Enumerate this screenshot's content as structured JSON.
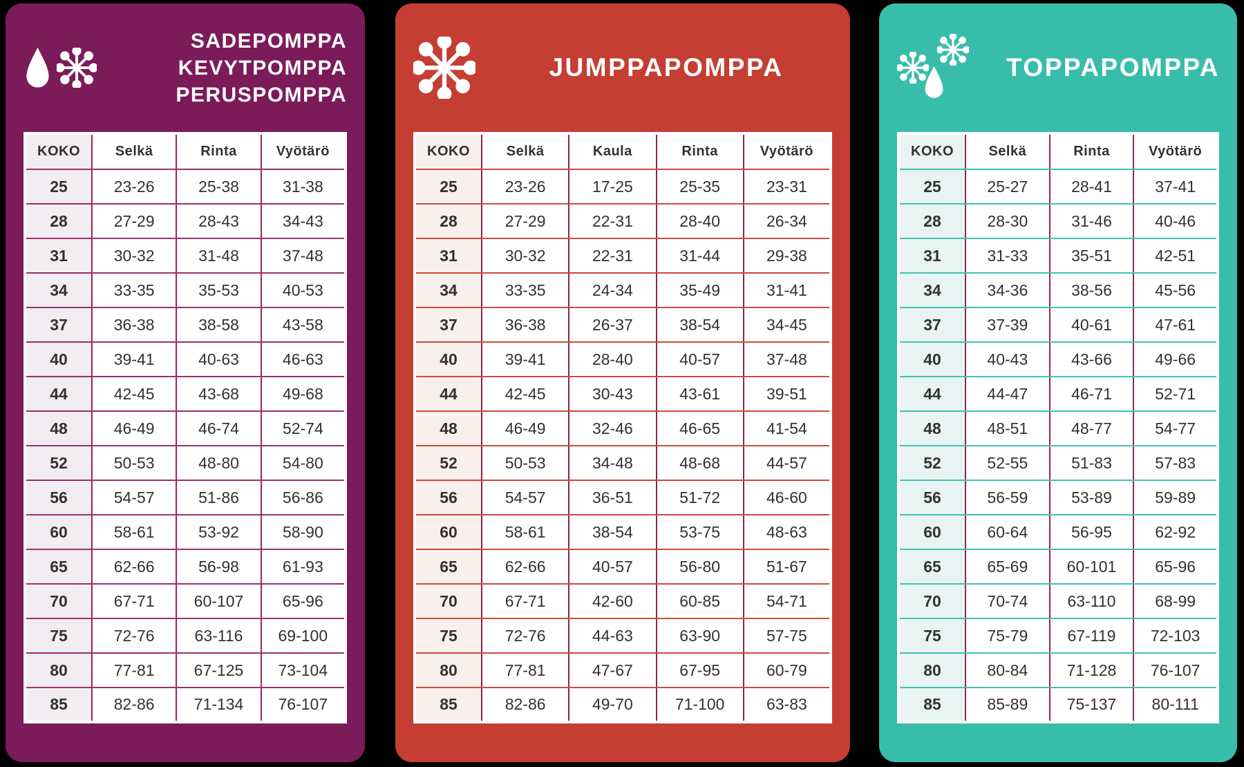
{
  "page": {
    "background": "#000000"
  },
  "chart_data": [
    {
      "type": "table",
      "panel": "sadepomppa-kevytpomppa-peruspomppa",
      "title_lines": [
        "SADEPOMPPA",
        "KEVYTPOMPPA",
        "PERUSPOMPPA"
      ],
      "icons": [
        "raindrop-icon",
        "snowflake-icon"
      ],
      "columns": [
        "KOKO",
        "Selkä",
        "Rinta",
        "Vyötärö"
      ],
      "rows": [
        [
          "25",
          "23-26",
          "25-38",
          "31-38"
        ],
        [
          "28",
          "27-29",
          "28-43",
          "34-43"
        ],
        [
          "31",
          "30-32",
          "31-48",
          "37-48"
        ],
        [
          "34",
          "33-35",
          "35-53",
          "40-53"
        ],
        [
          "37",
          "36-38",
          "38-58",
          "43-58"
        ],
        [
          "40",
          "39-41",
          "40-63",
          "46-63"
        ],
        [
          "44",
          "42-45",
          "43-68",
          "49-68"
        ],
        [
          "48",
          "46-49",
          "46-74",
          "52-74"
        ],
        [
          "52",
          "50-53",
          "48-80",
          "54-80"
        ],
        [
          "56",
          "54-57",
          "51-86",
          "56-86"
        ],
        [
          "60",
          "58-61",
          "53-92",
          "58-90"
        ],
        [
          "65",
          "62-66",
          "56-98",
          "61-93"
        ],
        [
          "70",
          "67-71",
          "60-107",
          "65-96"
        ],
        [
          "75",
          "72-76",
          "63-116",
          "69-100"
        ],
        [
          "80",
          "77-81",
          "67-125",
          "73-104"
        ],
        [
          "85",
          "82-86",
          "71-134",
          "76-107"
        ]
      ],
      "colors": {
        "panel_bg": "#7B1B59",
        "horizontal_border": "#9D2F6D",
        "vertical_border": "#94266A",
        "koko_column_bg": "#F2EDF0",
        "table_bg": "#FFFFFF",
        "title_text": "#FFFFFF",
        "cell_text": "#323130"
      }
    },
    {
      "type": "table",
      "panel": "jumppapomppa",
      "title_lines": [
        "JUMPPAPOMPPA"
      ],
      "icons": [
        "snowflake-icon"
      ],
      "columns": [
        "KOKO",
        "Selkä",
        "Kaula",
        "Rinta",
        "Vyötärö"
      ],
      "rows": [
        [
          "25",
          "23-26",
          "17-25",
          "25-35",
          "23-31"
        ],
        [
          "28",
          "27-29",
          "22-31",
          "28-40",
          "26-34"
        ],
        [
          "31",
          "30-32",
          "22-31",
          "31-44",
          "29-38"
        ],
        [
          "34",
          "33-35",
          "24-34",
          "35-49",
          "31-41"
        ],
        [
          "37",
          "36-38",
          "26-37",
          "38-54",
          "34-45"
        ],
        [
          "40",
          "39-41",
          "28-40",
          "40-57",
          "37-48"
        ],
        [
          "44",
          "42-45",
          "30-43",
          "43-61",
          "39-51"
        ],
        [
          "48",
          "46-49",
          "32-46",
          "46-65",
          "41-54"
        ],
        [
          "52",
          "50-53",
          "34-48",
          "48-68",
          "44-57"
        ],
        [
          "56",
          "54-57",
          "36-51",
          "51-72",
          "46-60"
        ],
        [
          "60",
          "58-61",
          "38-54",
          "53-75",
          "48-63"
        ],
        [
          "65",
          "62-66",
          "40-57",
          "56-80",
          "51-67"
        ],
        [
          "70",
          "67-71",
          "42-60",
          "60-85",
          "54-71"
        ],
        [
          "75",
          "72-76",
          "44-63",
          "63-90",
          "57-75"
        ],
        [
          "80",
          "77-81",
          "47-67",
          "67-95",
          "60-79"
        ],
        [
          "85",
          "82-86",
          "49-70",
          "71-100",
          "63-83"
        ]
      ],
      "colors": {
        "panel_bg": "#C43E33",
        "horizontal_border": "#D0473B",
        "vertical_border": "#8B2351",
        "koko_column_bg": "#F9EFEC",
        "table_bg": "#FFFFFF",
        "title_text": "#FFFFFF",
        "cell_text": "#323130"
      }
    },
    {
      "type": "table",
      "panel": "toppapomppa",
      "title_lines": [
        "TOPPAPOMPPA"
      ],
      "icons": [
        "snowflake-icon",
        "snowflake-icon",
        "raindrop-icon"
      ],
      "columns": [
        "KOKO",
        "Selkä",
        "Rinta",
        "Vyötärö"
      ],
      "rows": [
        [
          "25",
          "25-27",
          "28-41",
          "37-41"
        ],
        [
          "28",
          "28-30",
          "31-46",
          "40-46"
        ],
        [
          "31",
          "31-33",
          "35-51",
          "42-51"
        ],
        [
          "34",
          "34-36",
          "38-56",
          "45-56"
        ],
        [
          "37",
          "37-39",
          "40-61",
          "47-61"
        ],
        [
          "40",
          "40-43",
          "43-66",
          "49-66"
        ],
        [
          "44",
          "44-47",
          "46-71",
          "52-71"
        ],
        [
          "48",
          "48-51",
          "48-77",
          "54-77"
        ],
        [
          "52",
          "52-55",
          "51-83",
          "57-83"
        ],
        [
          "56",
          "56-59",
          "53-89",
          "59-89"
        ],
        [
          "60",
          "60-64",
          "56-95",
          "62-92"
        ],
        [
          "65",
          "65-69",
          "60-101",
          "65-96"
        ],
        [
          "70",
          "70-74",
          "63-110",
          "68-99"
        ],
        [
          "75",
          "75-79",
          "67-119",
          "72-103"
        ],
        [
          "80",
          "80-84",
          "71-128",
          "76-107"
        ],
        [
          "85",
          "85-89",
          "75-137",
          "80-111"
        ]
      ],
      "colors": {
        "panel_bg": "#38BDAA",
        "horizontal_border": "#41C2B0",
        "vertical_border": "#8E265E",
        "koko_column_bg": "#E8F4F1",
        "table_bg": "#FFFFFF",
        "title_text": "#FFFFFF",
        "cell_text": "#323130"
      }
    }
  ]
}
